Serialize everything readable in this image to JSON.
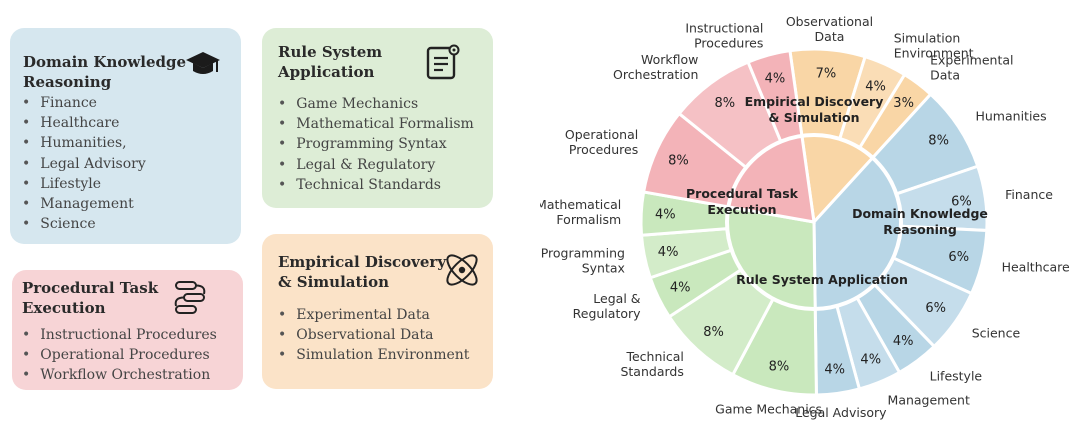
{
  "cards": {
    "domain": {
      "title_line1": "Domain Knowledge",
      "title_line2": "Reasoning",
      "icon": "graduation-cap-icon",
      "items": [
        "Finance",
        "Healthcare",
        "Humanities,",
        "Legal Advisory",
        "Lifestyle",
        "Management",
        "Science"
      ]
    },
    "rule": {
      "title_line1": "Rule System",
      "title_line2": "Application",
      "icon": "document-gear-icon",
      "items": [
        "Game Mechanics",
        "Mathematical Formalism",
        "Programming Syntax",
        "Legal & Regulatory",
        "Technical Standards"
      ]
    },
    "procedural": {
      "title_line1": "Procedural Task",
      "title_line2": "Execution",
      "icon": "workflow-icon",
      "items": [
        "Instructional Procedures",
        "Operational Procedures",
        "Workflow Orchestration"
      ]
    },
    "empirical": {
      "title_line1": "Empirical Discovery",
      "title_line2": "& Simulation",
      "icon": "atom-icon",
      "items": [
        "Experimental Data",
        "Observational Data",
        "Simulation Environment"
      ]
    }
  },
  "chart_data": {
    "type": "pie",
    "categories": [
      {
        "name": "Empirical Discovery & Simulation",
        "label_lines": [
          "Empirical Discovery",
          "& Simulation"
        ],
        "color": "#f9d6a6",
        "subcategories": [
          {
            "name": "Observational Data",
            "label_lines": [
              "Observational",
              "Data"
            ],
            "value": 7,
            "pct": "7%"
          },
          {
            "name": "Simulation Environment",
            "label_lines": [
              "Simulation",
              "Environment"
            ],
            "value": 4,
            "pct": "4%"
          },
          {
            "name": "Experimental Data",
            "label_lines": [
              "Experimental",
              "Data"
            ],
            "value": 3,
            "pct": "3%"
          }
        ]
      },
      {
        "name": "Domain Knowledge Reasoning",
        "label_lines": [
          "Domain Knowledge",
          "Reasoning"
        ],
        "color": "#b8d6e6",
        "subcategories": [
          {
            "name": "Humanities",
            "label_lines": [
              "Humanities"
            ],
            "value": 8,
            "pct": "8%"
          },
          {
            "name": "Finance",
            "label_lines": [
              "Finance"
            ],
            "value": 6,
            "pct": "6%"
          },
          {
            "name": "Healthcare",
            "label_lines": [
              "Healthcare"
            ],
            "value": 6,
            "pct": "6%"
          },
          {
            "name": "Science",
            "label_lines": [
              "Science"
            ],
            "value": 6,
            "pct": "6%"
          },
          {
            "name": "Lifestyle",
            "label_lines": [
              "Lifestyle"
            ],
            "value": 4,
            "pct": "4%"
          },
          {
            "name": "Management",
            "label_lines": [
              "Management"
            ],
            "value": 4,
            "pct": "4%"
          },
          {
            "name": "Legal Advisory",
            "label_lines": [
              "Legal Advisory"
            ],
            "value": 4,
            "pct": "4%"
          }
        ]
      },
      {
        "name": "Rule System Application",
        "label_lines": [
          "Rule System Application"
        ],
        "color": "#c9e8bd",
        "subcategories": [
          {
            "name": "Game Mechanics",
            "label_lines": [
              "Game Mechanics"
            ],
            "value": 8,
            "pct": "8%"
          },
          {
            "name": "Technical Standards",
            "label_lines": [
              "Technical",
              "Standards"
            ],
            "value": 8,
            "pct": "8%"
          },
          {
            "name": "Legal & Regulatory",
            "label_lines": [
              "Legal &",
              "Regulatory"
            ],
            "value": 4,
            "pct": "4%"
          },
          {
            "name": "Programming Syntax",
            "label_lines": [
              "Programming",
              "Syntax"
            ],
            "value": 4,
            "pct": "4%"
          },
          {
            "name": "Mathematical Formalism",
            "label_lines": [
              "Mathematical",
              "Formalism"
            ],
            "value": 4,
            "pct": "4%"
          }
        ]
      },
      {
        "name": "Procedural Task Execution",
        "label_lines": [
          "Procedural Task",
          "Execution"
        ],
        "color": "#f3b3b8",
        "subcategories": [
          {
            "name": "Operational Procedures",
            "label_lines": [
              "Operational",
              "Procedures"
            ],
            "value": 8,
            "pct": "8%"
          },
          {
            "name": "Workflow Orchestration",
            "label_lines": [
              "Workflow",
              "Orchestration"
            ],
            "value": 8,
            "pct": "8%"
          },
          {
            "name": "Instructional Procedures",
            "label_lines": [
              "Instructional",
              "Procedures"
            ],
            "value": 4,
            "pct": "4%"
          }
        ]
      }
    ]
  }
}
